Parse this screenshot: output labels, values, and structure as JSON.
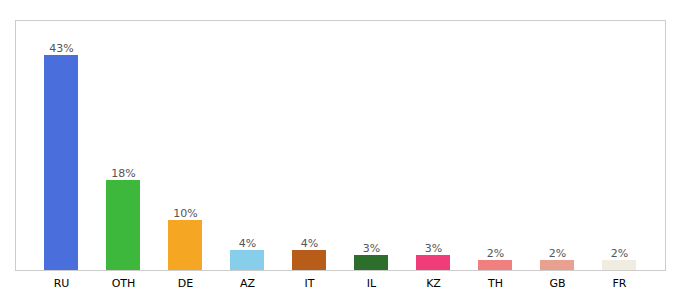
{
  "chart_data": {
    "type": "bar",
    "categories": [
      "RU",
      "OTH",
      "DE",
      "AZ",
      "IT",
      "IL",
      "KZ",
      "TH",
      "GB",
      "FR"
    ],
    "values": [
      43,
      18,
      10,
      4,
      4,
      3,
      3,
      2,
      2,
      2
    ],
    "value_labels": [
      "43%",
      "18%",
      "10%",
      "4%",
      "4%",
      "3%",
      "3%",
      "2%",
      "2%",
      "2%"
    ],
    "colors": [
      "#4a6fdc",
      "#3db83d",
      "#f5a623",
      "#87ceeb",
      "#b85c1a",
      "#2d6e2d",
      "#f03c78",
      "#f08080",
      "#e8a090",
      "#f0ede0"
    ],
    "ylim": [
      0,
      50
    ],
    "data_labels": true,
    "tick_labels": "x",
    "grid": false
  }
}
